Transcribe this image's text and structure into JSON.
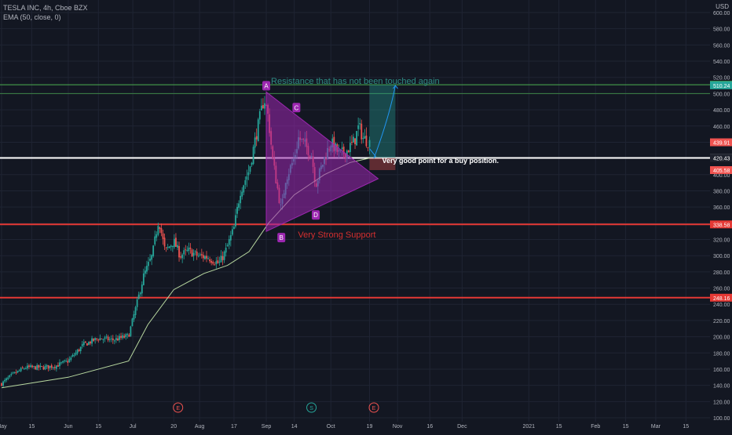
{
  "header": {
    "symbol_line": "TESLA INC, 4h, Cboe BZX",
    "indicator_line": "EMA (50, close, 0)",
    "currency": "USD"
  },
  "colors": {
    "background": "#131722",
    "grid": "#1f2433",
    "bull": "#26a69a",
    "bear": "#ef5350",
    "ema": "#b8d8a0",
    "resistance": "#4caf50",
    "support": "#e53935",
    "pattern_fill": "#9c27b0",
    "pattern_label": "#9c27b0",
    "annotation_teal": "#2e8b83",
    "annotation_red": "#d32f2f",
    "white": "#ffffff"
  },
  "chart_data": {
    "type": "candlestick",
    "y_axis": {
      "min": 100,
      "max": 600,
      "ticks": [
        100,
        120,
        140,
        160,
        180,
        200,
        220,
        240,
        260,
        280,
        300,
        320,
        340,
        360,
        380,
        400,
        440,
        460,
        480,
        500,
        520,
        540,
        560,
        580,
        600
      ],
      "tick_labels": [
        "100.00",
        "120.00",
        "140.00",
        "160.00",
        "180.00",
        "200.00",
        "220.00",
        "240.00",
        "260.00",
        "280.00",
        "300.00",
        "320.00",
        "340.00",
        "360.00",
        "380.00",
        "400.00",
        "440.00",
        "460.00",
        "480.00",
        "500.00",
        "520.00",
        "540.00",
        "560.00",
        "580.00",
        "600.00"
      ]
    },
    "x_axis": {
      "tick_labels": [
        "May",
        "15",
        "Jun",
        "15",
        "Jul",
        "20",
        "Aug",
        "17",
        "Sep",
        "14",
        "Oct",
        "19",
        "Nov",
        "16",
        "Dec",
        "2021",
        "15",
        "Feb",
        "15",
        "Mar",
        "15"
      ],
      "tick_dates": [
        "2020-05-01",
        "2020-05-15",
        "2020-06-01",
        "2020-06-15",
        "2020-07-01",
        "2020-07-20",
        "2020-08-01",
        "2020-08-17",
        "2020-09-01",
        "2020-09-14",
        "2020-10-01",
        "2020-10-19",
        "2020-11-01",
        "2020-11-16",
        "2020-12-01",
        "2021-01-01",
        "2021-01-15",
        "2021-02-01",
        "2021-02-15",
        "2021-03-01",
        "2021-03-15"
      ]
    },
    "price_labels": [
      {
        "value": 510.85,
        "text": "510.85",
        "color": "#4caf50"
      },
      {
        "value": 510.24,
        "text": "510.24",
        "color": "#26a69a"
      },
      {
        "value": 439.91,
        "text": "439.91",
        "color": "#ef5350"
      },
      {
        "value": 420.62,
        "text": "420.62",
        "color": "#9598a1"
      },
      {
        "value": 420.43,
        "text": "420.43",
        "color": "#1e222d"
      },
      {
        "value": 405.58,
        "text": "405.58",
        "color": "#ef5350"
      },
      {
        "value": 338.58,
        "text": "338.58",
        "color": "#e53935"
      },
      {
        "value": 248.16,
        "text": "248.16",
        "color": "#e53935"
      }
    ],
    "close_path": [
      [
        "2020-05-01",
        142
      ],
      [
        "2020-05-06",
        153
      ],
      [
        "2020-05-12",
        162
      ],
      [
        "2020-05-20",
        162
      ],
      [
        "2020-05-26",
        164
      ],
      [
        "2020-06-01",
        170
      ],
      [
        "2020-06-08",
        190
      ],
      [
        "2020-06-15",
        198
      ],
      [
        "2020-06-22",
        196
      ],
      [
        "2020-06-29",
        201
      ],
      [
        "2020-07-03",
        242
      ],
      [
        "2020-07-06",
        275
      ],
      [
        "2020-07-10",
        300
      ],
      [
        "2020-07-13",
        345
      ],
      [
        "2020-07-16",
        305
      ],
      [
        "2020-07-20",
        318
      ],
      [
        "2020-07-23",
        300
      ],
      [
        "2020-07-27",
        306
      ],
      [
        "2020-07-31",
        300
      ],
      [
        "2020-08-05",
        298
      ],
      [
        "2020-08-10",
        290
      ],
      [
        "2020-08-13",
        305
      ],
      [
        "2020-08-17",
        334
      ],
      [
        "2020-08-20",
        380
      ],
      [
        "2020-08-24",
        405
      ],
      [
        "2020-08-27",
        445
      ],
      [
        "2020-08-31",
        495
      ],
      [
        "2020-09-02",
        470
      ],
      [
        "2020-09-04",
        418
      ],
      [
        "2020-09-08",
        355
      ],
      [
        "2020-09-10",
        395
      ],
      [
        "2020-09-14",
        420
      ],
      [
        "2020-09-16",
        445
      ],
      [
        "2020-09-18",
        440
      ],
      [
        "2020-09-22",
        425
      ],
      [
        "2020-09-24",
        388
      ],
      [
        "2020-09-28",
        420
      ],
      [
        "2020-10-01",
        440
      ],
      [
        "2020-10-05",
        425
      ],
      [
        "2020-10-08",
        428
      ],
      [
        "2020-10-12",
        442
      ],
      [
        "2020-10-14",
        460
      ],
      [
        "2020-10-16",
        445
      ],
      [
        "2020-10-19",
        439.91
      ]
    ],
    "ema": [
      [
        "2020-05-01",
        137
      ],
      [
        "2020-06-01",
        150
      ],
      [
        "2020-06-29",
        170
      ],
      [
        "2020-07-08",
        215
      ],
      [
        "2020-07-20",
        258
      ],
      [
        "2020-08-03",
        278
      ],
      [
        "2020-08-14",
        288
      ],
      [
        "2020-08-24",
        305
      ],
      [
        "2020-09-02",
        340
      ],
      [
        "2020-09-14",
        375
      ],
      [
        "2020-09-28",
        400
      ],
      [
        "2020-10-10",
        415
      ],
      [
        "2020-10-19",
        420.43
      ]
    ],
    "earnings_markers": [
      {
        "date": "2020-07-22",
        "label": "E"
      },
      {
        "date": "2020-09-22",
        "label": "S"
      },
      {
        "date": "2020-10-21",
        "label": "E"
      }
    ],
    "lines": {
      "resistance_upper": 510.85,
      "resistance_lower": 500,
      "white_level": 420.62,
      "support_strong": 338.58,
      "support_low": 248.16
    },
    "pattern": {
      "points": [
        {
          "label": "A",
          "date": "2020-09-01",
          "value": 502
        },
        {
          "label": "B",
          "date": "2020-09-08",
          "value": 330
        },
        {
          "label": "C",
          "date": "2020-09-15",
          "value": 475
        },
        {
          "label": "D",
          "date": "2020-09-24",
          "value": 358
        }
      ],
      "triangle": [
        [
          "2020-09-01",
          502
        ],
        [
          "2020-09-01",
          330
        ],
        [
          "2020-10-23",
          395
        ]
      ]
    },
    "long_position": {
      "start": "2020-10-19",
      "end": "2020-10-31",
      "target": 510.85,
      "entry": 420.62,
      "stop": 405.58
    },
    "annotations": [
      {
        "text": "Resistance that has not been touched again",
        "date": "2020-09-01",
        "value": 512,
        "color": "#2e8b83"
      },
      {
        "text": "Very good point for a buy position.",
        "date": "2020-10-23",
        "value": 424,
        "color": "#ffffff"
      },
      {
        "text": "Very Strong Support",
        "date": "2020-09-15",
        "value": 330,
        "color": "#d32f2f"
      }
    ]
  }
}
